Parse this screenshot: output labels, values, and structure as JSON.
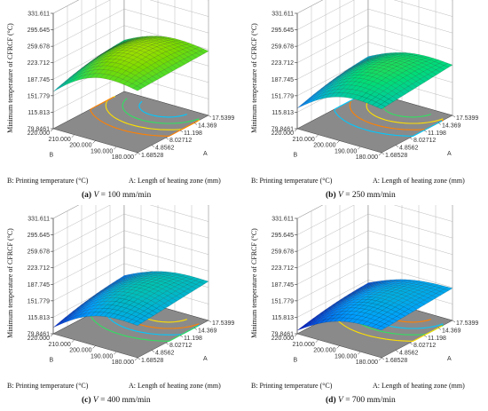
{
  "chart_data": [
    {
      "type": "surface",
      "panel": "(a)",
      "caption_var": "V",
      "caption_value": "= 100 mm/min",
      "zlabel": "Minimum temperature of CFRCF (°C)",
      "xlabel": "B: Printing temperature (°C)",
      "ylabel": "A: Length of heating zone (mm)",
      "x_axis_letter": "B",
      "y_axis_letter": "A",
      "z_ticks": [
        "331.611",
        "295.645",
        "259.678",
        "223.712",
        "187.745",
        "151.779",
        "115.813",
        "79.8461"
      ],
      "zlim": [
        79.8461,
        331.611
      ],
      "x_ticks": [
        "220.000",
        "210.000",
        "200.000",
        "190.000",
        "180.000"
      ],
      "xlim": [
        180,
        220
      ],
      "y_ticks": [
        "17.5399",
        "14.369",
        "11.198",
        "8.02712",
        "4.8562",
        "1.68528"
      ],
      "ylim": [
        1.68528,
        17.5399
      ],
      "surface": {
        "corner_low_low": 150,
        "corner_low_high": 185,
        "peak": 268,
        "corner_high_high": 220,
        "corner_high_low": 215
      }
    },
    {
      "type": "surface",
      "panel": "(b)",
      "caption_var": "V",
      "caption_value": "= 250 mm/min",
      "zlabel": "Minimum temperature of CFRCF (°C)",
      "xlabel": "B: Printing temperature (°C)",
      "ylabel": "A: Length of heating zone (mm)",
      "x_axis_letter": "B",
      "y_axis_letter": "A",
      "z_ticks": [
        "331.611",
        "295.645",
        "259.678",
        "223.712",
        "187.745",
        "151.779",
        "115.813",
        "79.8461"
      ],
      "zlim": [
        79.8461,
        331.611
      ],
      "x_ticks": [
        "220.000",
        "210.000",
        "200.000",
        "190.000",
        "180.000"
      ],
      "xlim": [
        180,
        220
      ],
      "y_ticks": [
        "17.5399",
        "14.369",
        "11.198",
        "8.02712",
        "4.8562",
        "1.68528"
      ],
      "ylim": [
        1.68528,
        17.5399
      ],
      "surface": {
        "corner_low_low": 115,
        "corner_low_high": 150,
        "peak": 225,
        "corner_high_high": 190,
        "corner_high_low": 175
      }
    },
    {
      "type": "surface",
      "panel": "(c)",
      "caption_var": "V",
      "caption_value": "= 400 mm/min",
      "zlabel": "Minimum temperature of CFRCF (°C)",
      "xlabel": "B: Printing temperature (°C)",
      "ylabel": "A: Length of heating zone (mm)",
      "x_axis_letter": "B",
      "y_axis_letter": "A",
      "z_ticks": [
        "331.611",
        "295.645",
        "259.678",
        "223.712",
        "187.745",
        "151.779",
        "115.813",
        "79.8461"
      ],
      "zlim": [
        79.8461,
        331.611
      ],
      "x_ticks": [
        "220.000",
        "210.000",
        "200.000",
        "190.000",
        "180.000"
      ],
      "xlim": [
        180,
        220
      ],
      "y_ticks": [
        "17.5399",
        "14.369",
        "11.198",
        "8.02712",
        "4.8562",
        "1.68528"
      ],
      "ylim": [
        1.68528,
        17.5399
      ],
      "surface": {
        "corner_low_low": 85,
        "corner_low_high": 120,
        "peak": 190,
        "corner_high_high": 165,
        "corner_high_low": 150
      }
    },
    {
      "type": "surface",
      "panel": "(d)",
      "caption_var": "V",
      "caption_value": "= 700 mm/min",
      "zlabel": "Minimum temperature of CFRCF (°C)",
      "xlabel": "B: Printing temperature (°C)",
      "ylabel": "A: Length of heating zone (mm)",
      "x_axis_letter": "B",
      "y_axis_letter": "A",
      "z_ticks": [
        "331.611",
        "295.645",
        "259.678",
        "223.712",
        "187.745",
        "151.779",
        "115.813",
        "79.8461"
      ],
      "zlim": [
        79.8461,
        331.611
      ],
      "x_ticks": [
        "220.000",
        "210.000",
        "200.000",
        "190.000",
        "180.000"
      ],
      "xlim": [
        180,
        220
      ],
      "y_ticks": [
        "17.5399",
        "14.369",
        "11.198",
        "8.02712",
        "4.8562",
        "1.68528"
      ],
      "ylim": [
        1.68528,
        17.5399
      ],
      "surface": {
        "corner_low_low": 80,
        "corner_low_high": 105,
        "peak": 170,
        "corner_high_high": 150,
        "corner_high_low": 140
      }
    }
  ]
}
